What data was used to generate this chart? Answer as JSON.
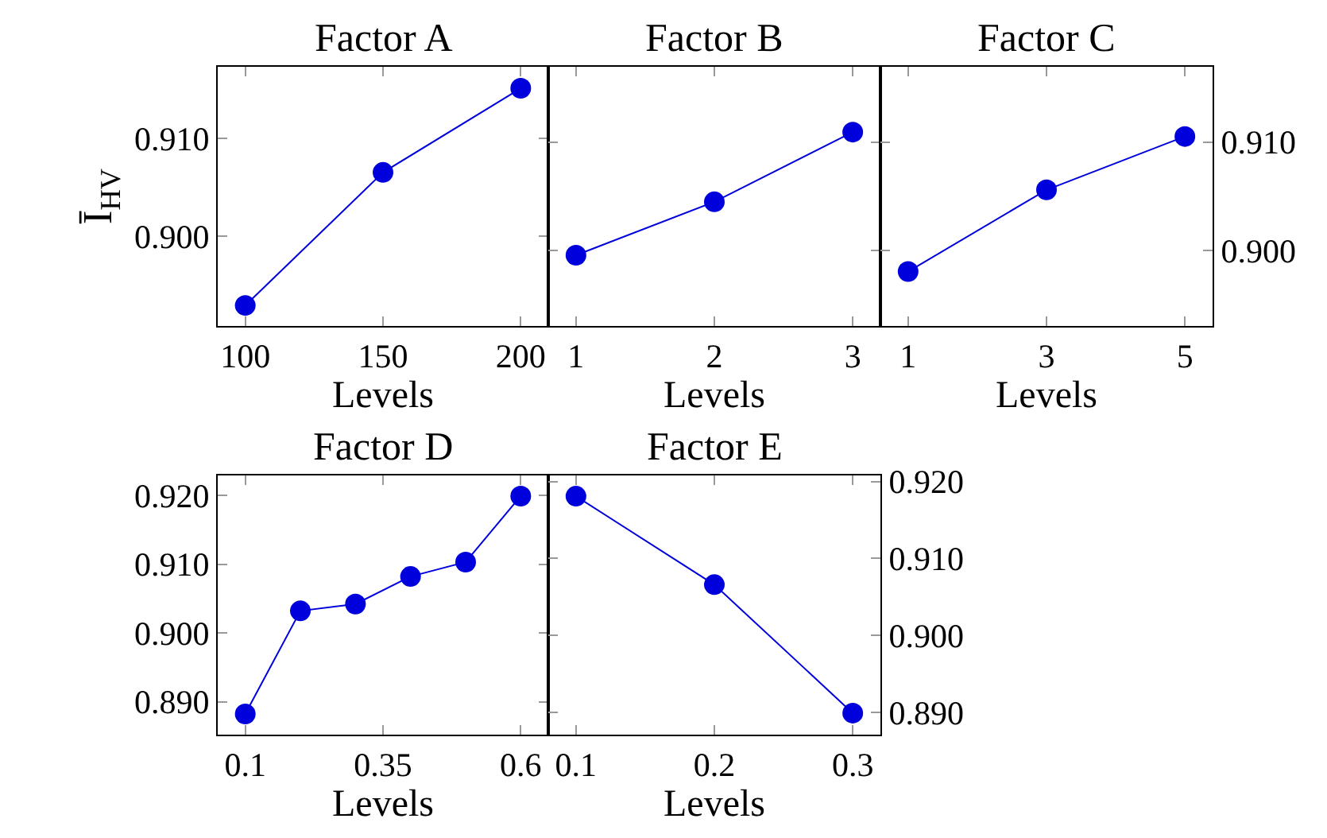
{
  "chart_data": [
    {
      "type": "line",
      "title": "Factor A",
      "xlabel": "Levels",
      "ylabel": "Ī$_{HV}$",
      "marker": "circle",
      "color": "#0000dd",
      "x": [
        100,
        150,
        200
      ],
      "values": [
        0.8929,
        0.9065,
        0.9151
      ],
      "xlim": [
        90,
        210
      ],
      "xticks": [
        100,
        150,
        200
      ],
      "ylim": [
        0.8908,
        0.9173
      ],
      "yticks": [
        {
          "value": 0.9,
          "label": "0.900"
        },
        {
          "value": 0.91,
          "label": "0.910"
        }
      ]
    },
    {
      "type": "line",
      "title": "Factor B",
      "xlabel": "Levels",
      "marker": "circle",
      "color": "#0000dd",
      "x": [
        1,
        2,
        3
      ],
      "values": [
        0.8996,
        0.9045,
        0.9109
      ],
      "xlim": [
        0.8,
        3.2
      ],
      "xticks": [
        1,
        2,
        3
      ],
      "ylim": [
        0.8931,
        0.9169
      ],
      "yticks": [
        {
          "value": 0.9,
          "label": null
        },
        {
          "value": 0.91,
          "label": null
        }
      ],
      "tick_labels": "x"
    },
    {
      "type": "line",
      "title": "Factor C",
      "xlabel": "Levels",
      "marker": "circle",
      "color": "#0000dd",
      "x": [
        1,
        3,
        5
      ],
      "values": [
        0.8981,
        0.9056,
        0.9105
      ],
      "xlim": [
        0.6,
        5.4
      ],
      "xticks": [
        1,
        3,
        5
      ],
      "ylim": [
        0.8931,
        0.9169
      ],
      "yticks": [
        {
          "value": 0.9,
          "label": "0.900"
        },
        {
          "value": 0.91,
          "label": "0.910"
        }
      ]
    },
    {
      "type": "line",
      "title": "Factor D",
      "xlabel": "Levels",
      "marker": "circle",
      "color": "#0000dd",
      "x": [
        0.1,
        0.2,
        0.3,
        0.4,
        0.5,
        0.6
      ],
      "values": [
        0.8882,
        0.9032,
        0.9042,
        0.9082,
        0.9103,
        0.9199
      ],
      "xlim": [
        0.05,
        0.65
      ],
      "xticks": [
        0.1,
        0.35,
        0.6
      ],
      "ylim": [
        0.8852,
        0.9229
      ],
      "yticks": [
        {
          "value": 0.89,
          "label": "0.890"
        },
        {
          "value": 0.9,
          "label": "0.900"
        },
        {
          "value": 0.91,
          "label": "0.910"
        },
        {
          "value": 0.92,
          "label": "0.920"
        }
      ]
    },
    {
      "type": "line",
      "title": "Factor E",
      "xlabel": "Levels",
      "marker": "circle",
      "color": "#0000dd",
      "x": [
        0.1,
        0.2,
        0.3
      ],
      "values": [
        0.9181,
        0.9066,
        0.8899
      ],
      "xlim": [
        0.08,
        0.32
      ],
      "xticks": [
        0.1,
        0.2,
        0.3
      ],
      "ylim": [
        0.8871,
        0.9208
      ],
      "yticks": [
        {
          "value": 0.89,
          "label": "0.890"
        },
        {
          "value": 0.9,
          "label": "0.900"
        },
        {
          "value": 0.91,
          "label": "0.910"
        },
        {
          "value": 0.92,
          "label": "0.920"
        }
      ]
    }
  ]
}
